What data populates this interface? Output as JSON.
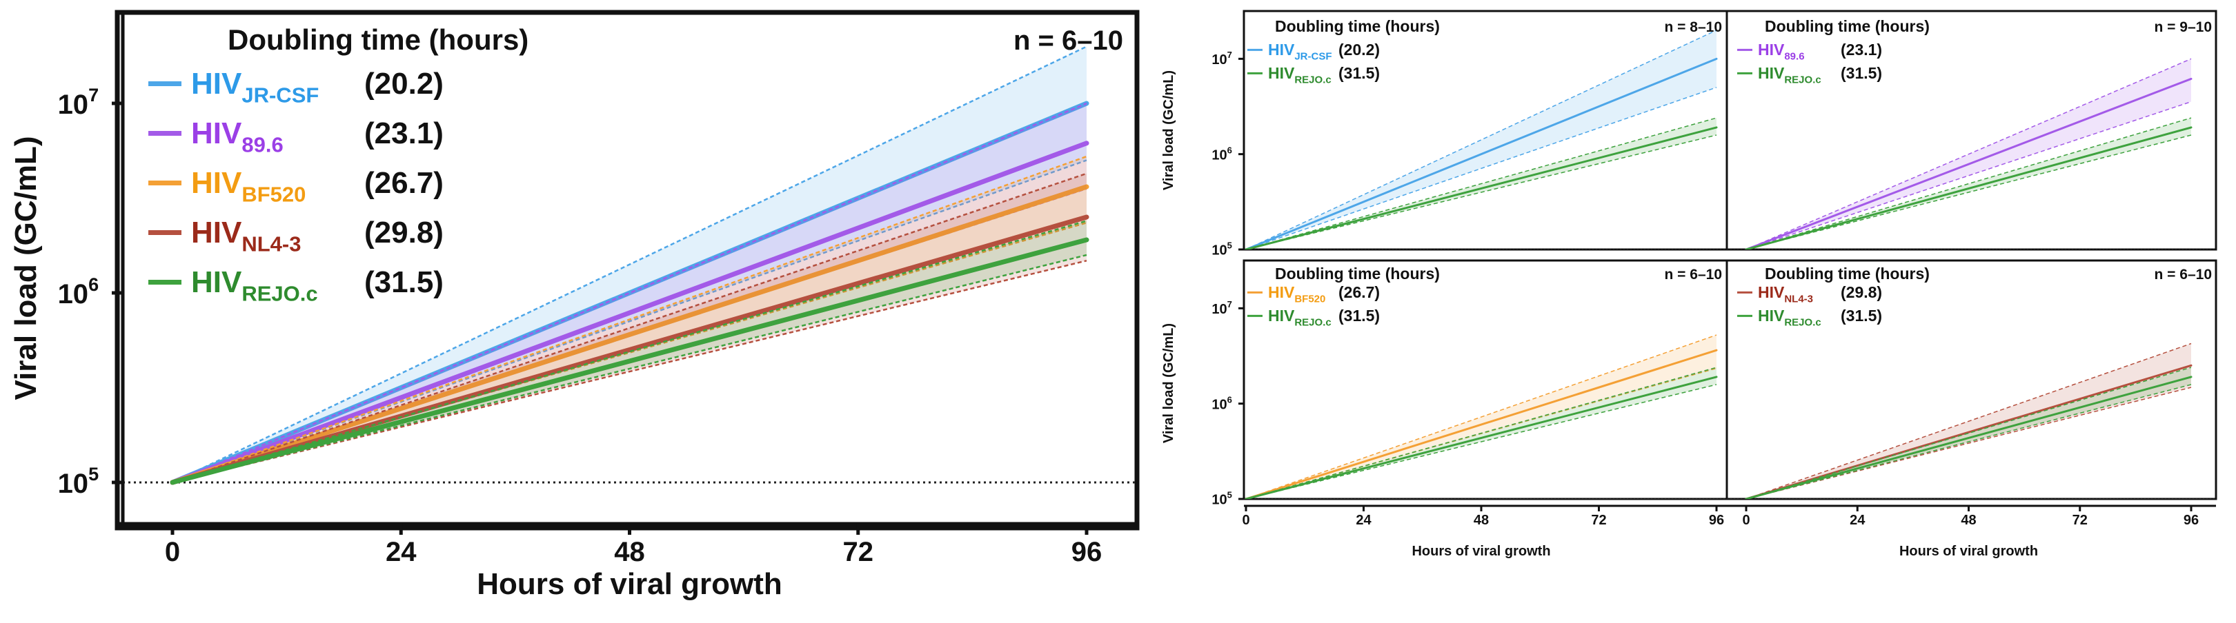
{
  "colors": {
    "jrcsf": "#4da6e8",
    "p896": "#a35ae8",
    "bf520": "#f4a035",
    "nl43": "#b5503f",
    "rejo": "#3ea23e",
    "jrcsf_label": "#2d9ae8",
    "p896_label": "#9b3fe6",
    "bf520_label": "#f39c12",
    "nl43_label": "#9b2a1a",
    "rejo_label": "#2e8b2e"
  },
  "chart_data": [
    {
      "type": "line",
      "panel": "main",
      "xlabel": "Hours of viral growth",
      "ylabel": "Viral load (GC/mL)",
      "xticks": [
        "0",
        "24",
        "48",
        "72",
        "96"
      ],
      "ytick_mantissa": [
        "10",
        "10",
        "10"
      ],
      "ytick_exponents": [
        "5",
        "6",
        "7"
      ],
      "legend_title": "Doubling time (hours)",
      "n_label": "n = 6–10",
      "xlim": [
        0,
        96
      ],
      "ylim_log10": [
        4.88,
        7.4
      ],
      "baseline_log10": 5,
      "series": [
        {
          "key": "jrcsf",
          "prefix": "HIV",
          "sub": "JR-CSF",
          "dt": "(20.2)",
          "end_log10": 7.0,
          "low_log10": 6.7,
          "high_log10": 7.3
        },
        {
          "key": "p896",
          "prefix": "HIV",
          "sub": "89.6",
          "dt": "(23.1)",
          "end_log10": 6.79,
          "low_log10": 6.55,
          "high_log10": 7.0
        },
        {
          "key": "bf520",
          "prefix": "HIV",
          "sub": "BF520",
          "dt": "(26.7)",
          "end_log10": 6.56,
          "low_log10": 6.37,
          "high_log10": 6.72
        },
        {
          "key": "nl43",
          "prefix": "HIV",
          "sub": "NL4-3",
          "dt": "(29.8)",
          "end_log10": 6.4,
          "low_log10": 6.17,
          "high_log10": 6.63
        },
        {
          "key": "rejo",
          "prefix": "HIV",
          "sub": "REJO.c",
          "dt": "(31.5)",
          "end_log10": 6.28,
          "low_log10": 6.2,
          "high_log10": 6.38
        }
      ]
    },
    {
      "type": "line",
      "panel": "small-top-left",
      "xlabel": "",
      "ylabel": "Viral load (GC/mL)",
      "xticks": [
        "0",
        "24",
        "48",
        "72",
        "96"
      ],
      "ytick_mantissa": [
        "10",
        "10",
        "10"
      ],
      "ytick_exponents": [
        "5",
        "6",
        "7"
      ],
      "legend_title": "Doubling time (hours)",
      "n_label": "n = 8–10",
      "xlim": [
        0,
        96
      ],
      "ylim_log10": [
        4.92,
        7.4
      ],
      "baseline_log10": 5,
      "series": [
        {
          "key": "jrcsf",
          "prefix": "HIV",
          "sub": "JR-CSF",
          "dt": "(20.2)",
          "end_log10": 7.0,
          "low_log10": 6.7,
          "high_log10": 7.3
        },
        {
          "key": "rejo",
          "prefix": "HIV",
          "sub": "REJO.c",
          "dt": "(31.5)",
          "end_log10": 6.28,
          "low_log10": 6.2,
          "high_log10": 6.38
        }
      ]
    },
    {
      "type": "line",
      "panel": "small-top-right",
      "xlabel": "",
      "ylabel": "",
      "xticks": [
        "0",
        "24",
        "48",
        "72",
        "96"
      ],
      "ytick_mantissa": [],
      "ytick_exponents": [],
      "legend_title": "Doubling time (hours)",
      "n_label": "n = 9–10",
      "xlim": [
        0,
        96
      ],
      "ylim_log10": [
        4.92,
        7.4
      ],
      "baseline_log10": 5,
      "series": [
        {
          "key": "p896",
          "prefix": "HIV",
          "sub": "89.6",
          "dt": "(23.1)",
          "end_log10": 6.79,
          "low_log10": 6.55,
          "high_log10": 7.0
        },
        {
          "key": "rejo",
          "prefix": "HIV",
          "sub": "REJO.c",
          "dt": "(31.5)",
          "end_log10": 6.28,
          "low_log10": 6.2,
          "high_log10": 6.38
        }
      ]
    },
    {
      "type": "line",
      "panel": "small-bottom-left",
      "xlabel": "Hours of viral growth",
      "ylabel": "Viral load (GC/mL)",
      "xticks": [
        "0",
        "24",
        "48",
        "72",
        "96"
      ],
      "ytick_mantissa": [
        "10",
        "10",
        "10"
      ],
      "ytick_exponents": [
        "5",
        "6",
        "7"
      ],
      "legend_title": "Doubling time (hours)",
      "n_label": "n = 6–10",
      "xlim": [
        0,
        96
      ],
      "ylim_log10": [
        4.92,
        7.4
      ],
      "baseline_log10": 5,
      "series": [
        {
          "key": "bf520",
          "prefix": "HIV",
          "sub": "BF520",
          "dt": "(26.7)",
          "end_log10": 6.56,
          "low_log10": 6.37,
          "high_log10": 6.72
        },
        {
          "key": "rejo",
          "prefix": "HIV",
          "sub": "REJO.c",
          "dt": "(31.5)",
          "end_log10": 6.28,
          "low_log10": 6.2,
          "high_log10": 6.38
        }
      ]
    },
    {
      "type": "line",
      "panel": "small-bottom-right",
      "xlabel": "Hours of viral growth",
      "ylabel": "",
      "xticks": [
        "0",
        "24",
        "48",
        "72",
        "96"
      ],
      "ytick_mantissa": [],
      "ytick_exponents": [],
      "legend_title": "Doubling time (hours)",
      "n_label": "n = 6–10",
      "xlim": [
        0,
        96
      ],
      "ylim_log10": [
        4.92,
        7.4
      ],
      "baseline_log10": 5,
      "series": [
        {
          "key": "nl43",
          "prefix": "HIV",
          "sub": "NL4-3",
          "dt": "(29.8)",
          "end_log10": 6.4,
          "low_log10": 6.17,
          "high_log10": 6.63
        },
        {
          "key": "rejo",
          "prefix": "HIV",
          "sub": "REJO.c",
          "dt": "(31.5)",
          "end_log10": 6.28,
          "low_log10": 6.2,
          "high_log10": 6.38
        }
      ]
    }
  ]
}
